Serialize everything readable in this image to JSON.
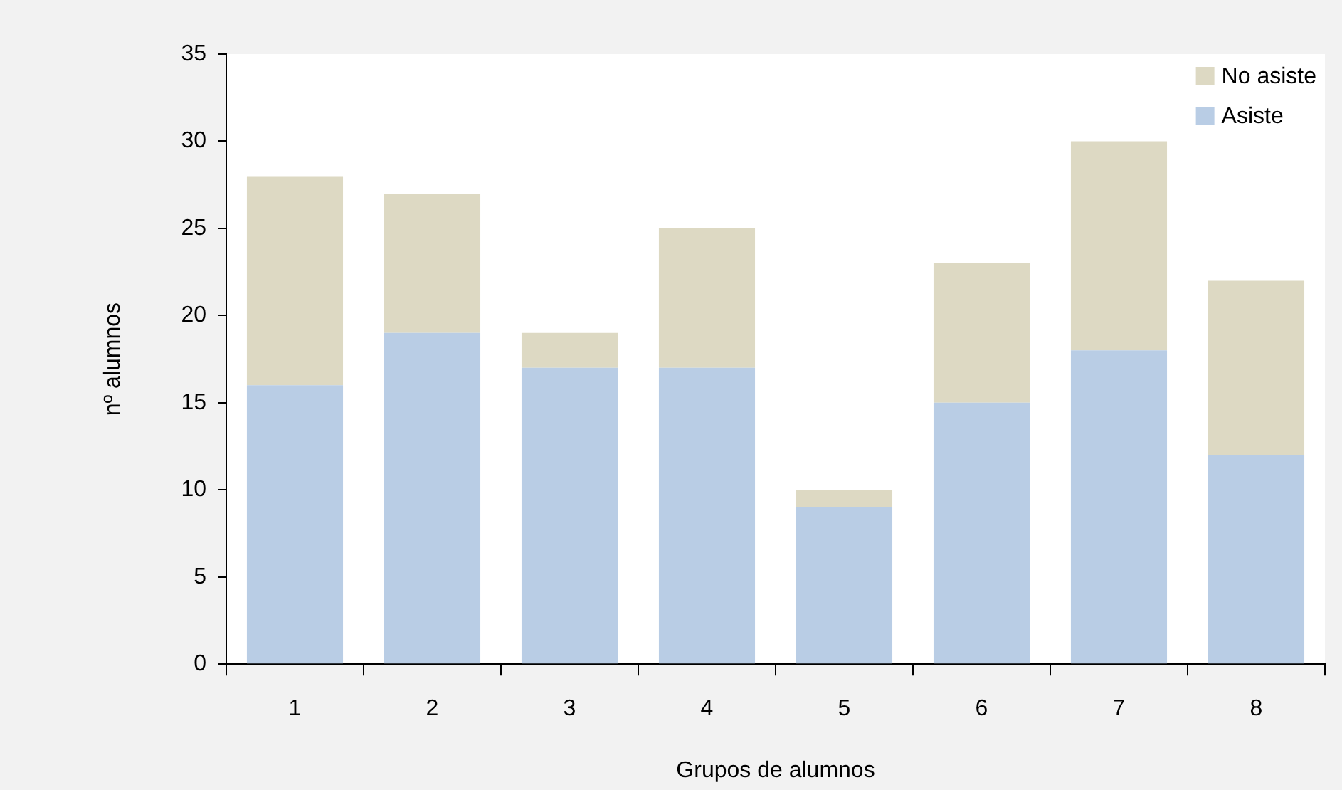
{
  "chart_data": {
    "type": "bar",
    "stacked": true,
    "xlabel": "Grupos de alumnos",
    "ylabel": "nº alumnos",
    "categories": [
      "1",
      "2",
      "3",
      "4",
      "5",
      "6",
      "7",
      "8"
    ],
    "series": [
      {
        "name": "Asiste",
        "color": "#b9cde5",
        "values": [
          16,
          19,
          17,
          17,
          9,
          15,
          18,
          12
        ]
      },
      {
        "name": "No asiste",
        "color": "#ddd9c3",
        "values": [
          12,
          8,
          2,
          8,
          1,
          8,
          12,
          10
        ]
      }
    ],
    "ylim": [
      0,
      35
    ],
    "yticks": [
      0,
      5,
      10,
      15,
      20,
      25,
      30,
      35
    ],
    "grid": false,
    "legend": "top right"
  }
}
